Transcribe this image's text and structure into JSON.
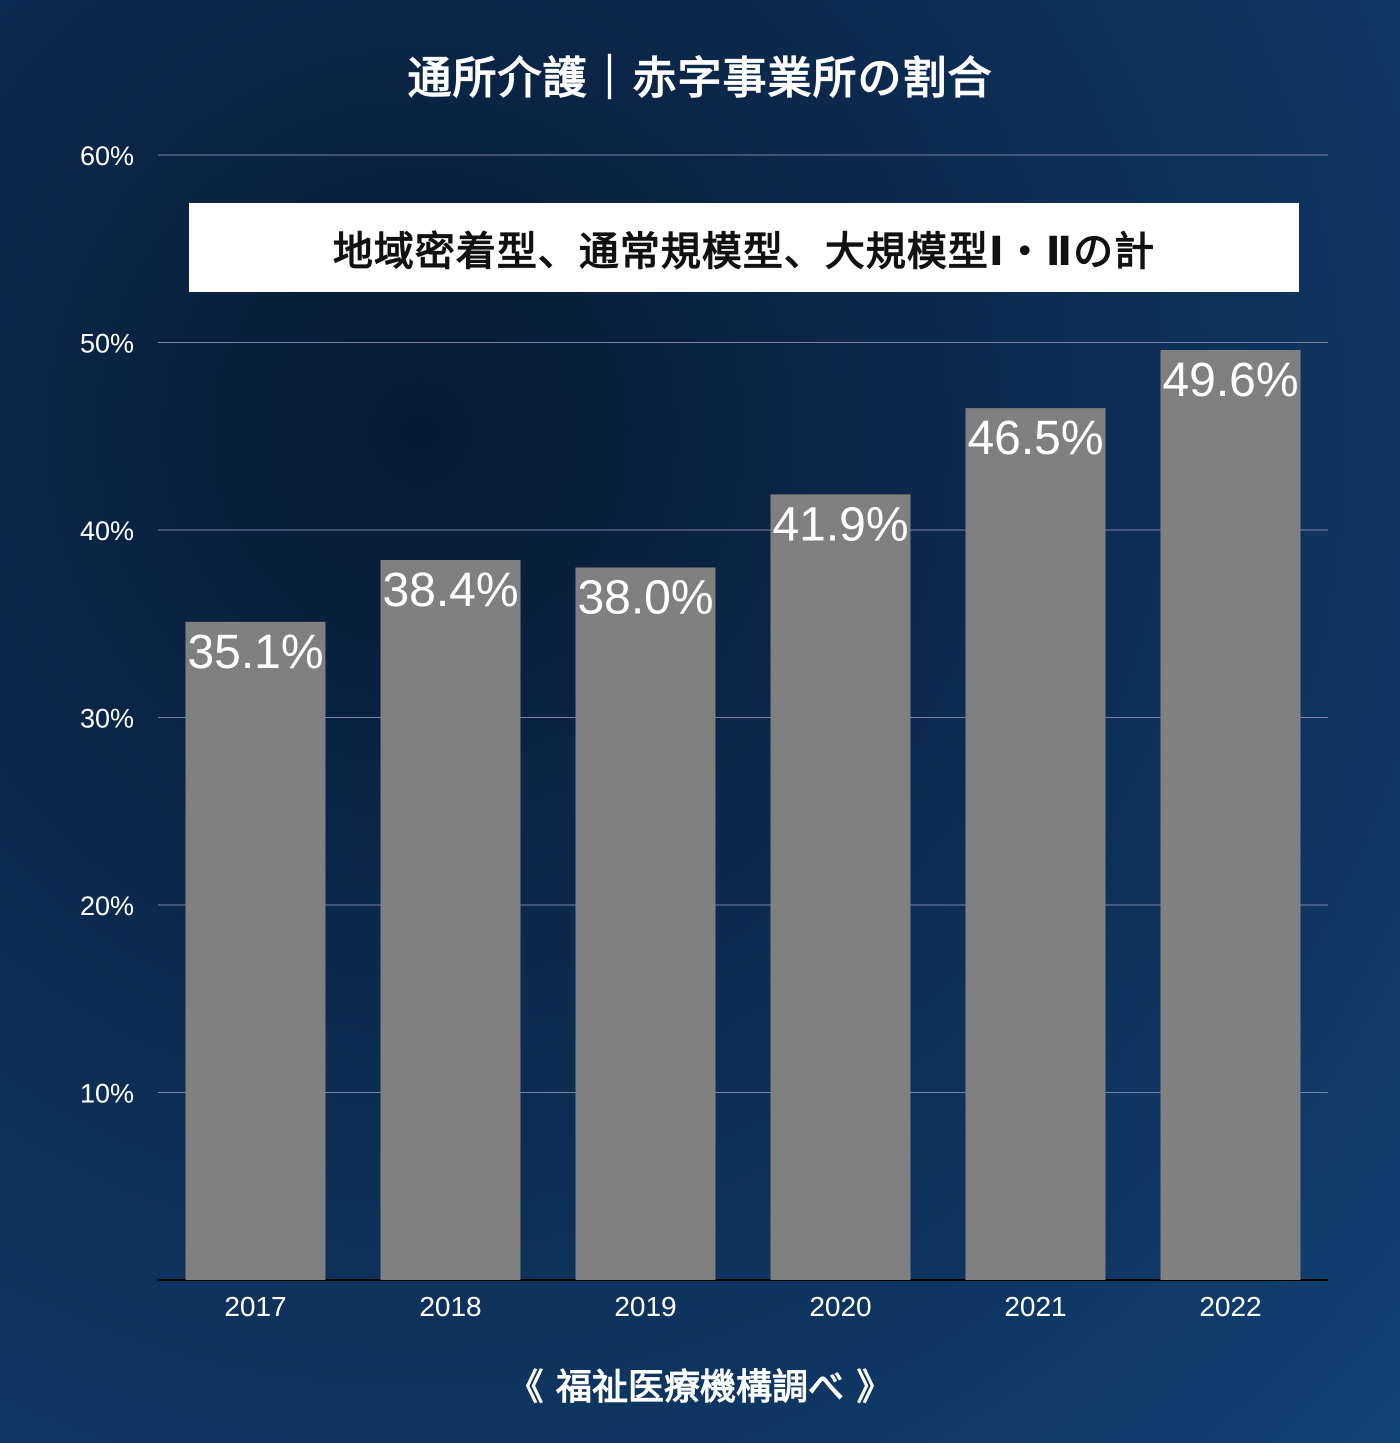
{
  "title": "通所介護｜赤字事業所の割合",
  "subtitle": "地域密着型、通常規模型、大規模型Ⅰ・Ⅱの計",
  "source": "《 福祉医療機構調べ 》",
  "colors": {
    "bar": "#808080",
    "gridline": "#7d7fa8",
    "text": "#ffffff",
    "axis": "#000000"
  },
  "chart_data": {
    "type": "bar",
    "title": "通所介護｜赤字事業所の割合",
    "subtitle": "地域密着型、通常規模型、大規模型Ⅰ・Ⅱの計",
    "categories": [
      "2017",
      "2018",
      "2019",
      "2020",
      "2021",
      "2022"
    ],
    "values": [
      35.1,
      38.4,
      38.0,
      41.9,
      46.5,
      49.6
    ],
    "data_labels": [
      "35.1%",
      "38.4%",
      "38.0%",
      "41.9%",
      "46.5%",
      "49.6%"
    ],
    "ylim": [
      0,
      60
    ],
    "yticks": [
      10,
      20,
      30,
      40,
      50,
      60
    ],
    "ytick_labels": [
      "10%",
      "20%",
      "30%",
      "40%",
      "50%",
      "60%"
    ],
    "grid": true,
    "xlabel": "",
    "ylabel": ""
  }
}
